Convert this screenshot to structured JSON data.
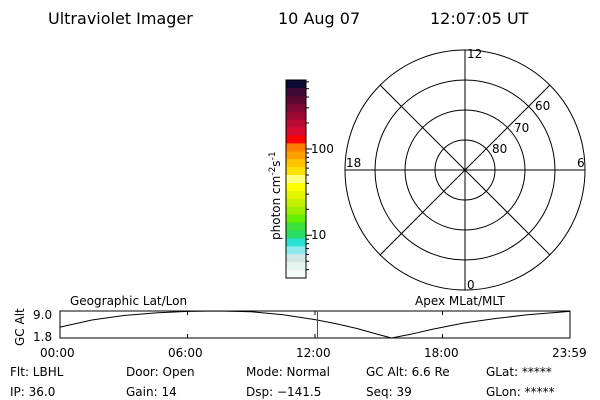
{
  "header": {
    "instrument": "Ultraviolet Imager",
    "date": "10 Aug 07",
    "time": "12:07:05 UT"
  },
  "colorbar": {
    "label": "photon cm⁻²s⁻¹",
    "label_base": "photon cm",
    "label_exp1": "-2",
    "label_s": "s",
    "label_exp2": "-1",
    "scale": "log",
    "range": [
      3.2,
      630
    ],
    "ticks": [
      {
        "value": 10,
        "label": "10"
      },
      {
        "value": 100,
        "label": "100"
      }
    ],
    "colors": [
      "#0a0a32",
      "#3c0a32",
      "#5a0a32",
      "#7d0a32",
      "#9b0a32",
      "#b90a32",
      "#d70a32",
      "#ff0000",
      "#ff7d00",
      "#ffa000",
      "#ffc300",
      "#ffe100",
      "#ffff7d",
      "#ffff00",
      "#e6f500",
      "#c3f000",
      "#9bf000",
      "#64f000",
      "#3ce13c",
      "#28dc64",
      "#28e1d2",
      "#8ceaf0",
      "#d2e6e6",
      "#e6f5ee",
      "#f5fafa"
    ]
  },
  "polar": {
    "mlt_labels": [
      "12",
      "6",
      "0",
      "18"
    ],
    "lat_rings": [
      80,
      70,
      60
    ],
    "lat_labels": [
      "80",
      "70",
      "60"
    ],
    "outer_lat": 50
  },
  "timeline": {
    "left_label": "Geographic Lat/Lon",
    "right_label": "Apex MLat/MLT",
    "ylabel": "GC Alt",
    "ytick_labels": [
      "9.0",
      "1.8"
    ],
    "xtick_labels": [
      "00:00",
      "06:00",
      "12:00",
      "18:00",
      "23:59"
    ],
    "current_time_color": "#ff0000"
  },
  "chart_data": {
    "type": "line",
    "title": "",
    "xlabel": "",
    "ylabel": "GC Alt",
    "xlim": [
      0,
      24
    ],
    "ylim": [
      1.8,
      9.0
    ],
    "x": [
      0,
      1.5,
      3,
      4.5,
      6,
      7.5,
      9,
      10.5,
      12,
      13,
      14,
      15,
      15.6,
      16.5,
      17.5,
      19,
      20.5,
      22,
      23.99
    ],
    "y": [
      4.7,
      6.6,
      7.8,
      8.5,
      8.9,
      9.0,
      8.8,
      8.0,
      6.7,
      5.6,
      4.3,
      2.7,
      1.8,
      2.8,
      4.1,
      5.8,
      7.0,
      8.0,
      8.9
    ],
    "current_time": 12.118
  },
  "status": {
    "flt": "Flt: LBHL",
    "ip": "IP: 36.0",
    "door": "Door: Open",
    "gain": "Gain: 14",
    "mode": "Mode: Normal",
    "dsp": "Dsp: −141.5",
    "gcalt": "GC Alt: 6.6 Re",
    "seq": "Seq: 39",
    "glat": "GLat: *****",
    "glon": "GLon: *****"
  }
}
